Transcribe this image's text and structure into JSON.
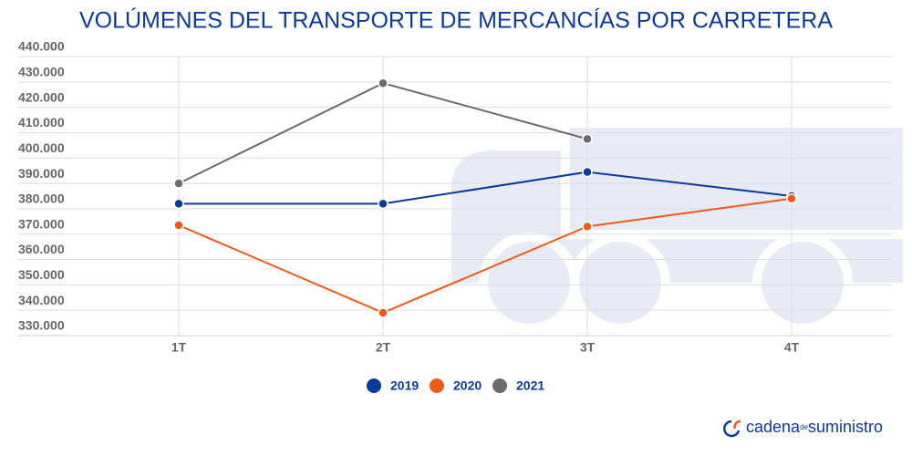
{
  "chart_data": {
    "type": "line",
    "title": "VOLÚMENES DEL TRANSPORTE DE MERCANCÍAS POR CARRETERA",
    "categories": [
      "1T",
      "2T",
      "3T",
      "4T"
    ],
    "series": [
      {
        "name": "2019",
        "color": "#0a3a9c",
        "values": [
          382000,
          382000,
          394500,
          385000
        ]
      },
      {
        "name": "2020",
        "color": "#f15a16",
        "values": [
          373500,
          339000,
          373000,
          384000
        ]
      },
      {
        "name": "2021",
        "color": "#6b6b6b",
        "values": [
          390000,
          429500,
          407500,
          null
        ]
      }
    ],
    "ylim": [
      330000,
      440000
    ],
    "yticks": [
      {
        "value": 330000,
        "label": "330.000"
      },
      {
        "value": 340000,
        "label": "340.000"
      },
      {
        "value": 350000,
        "label": "350.000"
      },
      {
        "value": 360000,
        "label": "360.000"
      },
      {
        "value": 370000,
        "label": "370.000"
      },
      {
        "value": 380000,
        "label": "380.000"
      },
      {
        "value": 390000,
        "label": "390.000"
      },
      {
        "value": 400000,
        "label": "400.000"
      },
      {
        "value": 410000,
        "label": "410.000"
      },
      {
        "value": 420000,
        "label": "420.000"
      },
      {
        "value": 430000,
        "label": "430.000"
      },
      {
        "value": 440000,
        "label": "440.000"
      }
    ],
    "grid": true,
    "legend": "bottom",
    "brand": {
      "part1": "cadena",
      "part2": "de",
      "part3": "suministro"
    }
  }
}
